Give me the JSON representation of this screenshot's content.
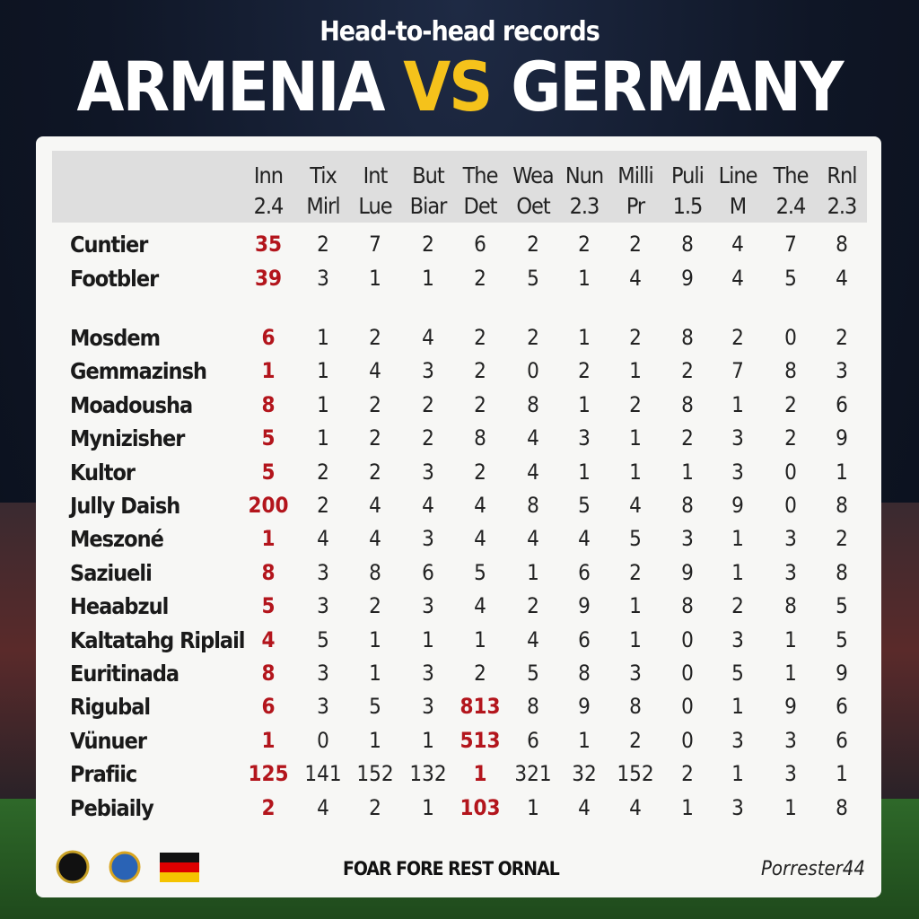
{
  "header": {
    "kicker": "Head-to-head records",
    "team_a": "ARMENIA",
    "versus": "VS",
    "team_b": "GERMANY"
  },
  "table": {
    "columns": [
      [
        "Inn",
        "2.4"
      ],
      [
        "Tix",
        "Mirl"
      ],
      [
        "Int",
        "Lue"
      ],
      [
        "But",
        "Biar"
      ],
      [
        "The",
        "Det"
      ],
      [
        "Wea",
        "Oet"
      ],
      [
        "Nun",
        "2.3"
      ],
      [
        "Milli",
        "Pr"
      ],
      [
        "Puli",
        "1.5"
      ],
      [
        "Line",
        "M"
      ],
      [
        "The",
        "2.4"
      ],
      [
        "Rnl",
        "2.3"
      ]
    ],
    "rows": [
      {
        "name": "Cuntier",
        "values": [
          35,
          2,
          7,
          2,
          6,
          2,
          2,
          2,
          8,
          4,
          7,
          8
        ]
      },
      {
        "name": "Footbler",
        "values": [
          39,
          3,
          1,
          1,
          2,
          5,
          1,
          4,
          9,
          4,
          5,
          4
        ]
      },
      {
        "name": "Mosdem",
        "values": [
          6,
          1,
          2,
          4,
          2,
          2,
          1,
          2,
          8,
          2,
          0,
          2
        ]
      },
      {
        "name": "Gemmazinsh",
        "values": [
          1,
          1,
          4,
          3,
          2,
          0,
          2,
          1,
          2,
          7,
          8,
          3
        ]
      },
      {
        "name": "Moadousha",
        "values": [
          8,
          1,
          2,
          2,
          2,
          8,
          1,
          2,
          8,
          1,
          2,
          6
        ]
      },
      {
        "name": "Mynizisher",
        "values": [
          5,
          1,
          2,
          2,
          8,
          4,
          3,
          1,
          2,
          3,
          2,
          9
        ]
      },
      {
        "name": "Kultor",
        "values": [
          5,
          2,
          2,
          3,
          2,
          4,
          1,
          1,
          1,
          3,
          0,
          1
        ]
      },
      {
        "name": "Jully Daish",
        "values": [
          200,
          2,
          4,
          4,
          4,
          8,
          5,
          4,
          8,
          9,
          0,
          8
        ]
      },
      {
        "name": "Meszoné",
        "values": [
          1,
          4,
          4,
          3,
          4,
          4,
          4,
          5,
          3,
          1,
          3,
          2
        ]
      },
      {
        "name": "Saziueli",
        "values": [
          8,
          3,
          8,
          6,
          5,
          1,
          6,
          2,
          9,
          1,
          3,
          8
        ]
      },
      {
        "name": "Heaabzul",
        "values": [
          5,
          3,
          2,
          3,
          4,
          2,
          9,
          1,
          8,
          2,
          8,
          5
        ]
      },
      {
        "name": "Kaltatahg Riplail",
        "values": [
          4,
          5,
          1,
          1,
          1,
          4,
          6,
          1,
          0,
          3,
          1,
          5
        ]
      },
      {
        "name": "Euritinada",
        "values": [
          8,
          3,
          1,
          3,
          2,
          5,
          8,
          3,
          0,
          5,
          1,
          9
        ]
      },
      {
        "name": "Rigubal",
        "values": [
          6,
          3,
          5,
          3,
          813,
          8,
          9,
          8,
          0,
          1,
          9,
          6
        ]
      },
      {
        "name": "Vünuer",
        "values": [
          1,
          0,
          1,
          1,
          513,
          6,
          1,
          2,
          0,
          3,
          3,
          6
        ]
      },
      {
        "name": "Prafiic",
        "values": [
          125,
          141,
          152,
          132,
          1,
          321,
          32,
          152,
          2,
          1,
          3,
          1
        ]
      },
      {
        "name": "Pebiaily",
        "values": [
          2,
          4,
          2,
          1,
          103,
          1,
          4,
          4,
          1,
          3,
          1,
          8
        ]
      }
    ],
    "highlight_color": "#b3151c",
    "highlight_columns": [
      0
    ],
    "highlight_cells": [
      [
        13,
        4
      ],
      [
        14,
        4
      ],
      [
        15,
        4
      ],
      [
        16,
        4
      ]
    ]
  },
  "footer": {
    "caption": "FOAR FORE REST ORNAL",
    "brand": "Porrester44"
  }
}
